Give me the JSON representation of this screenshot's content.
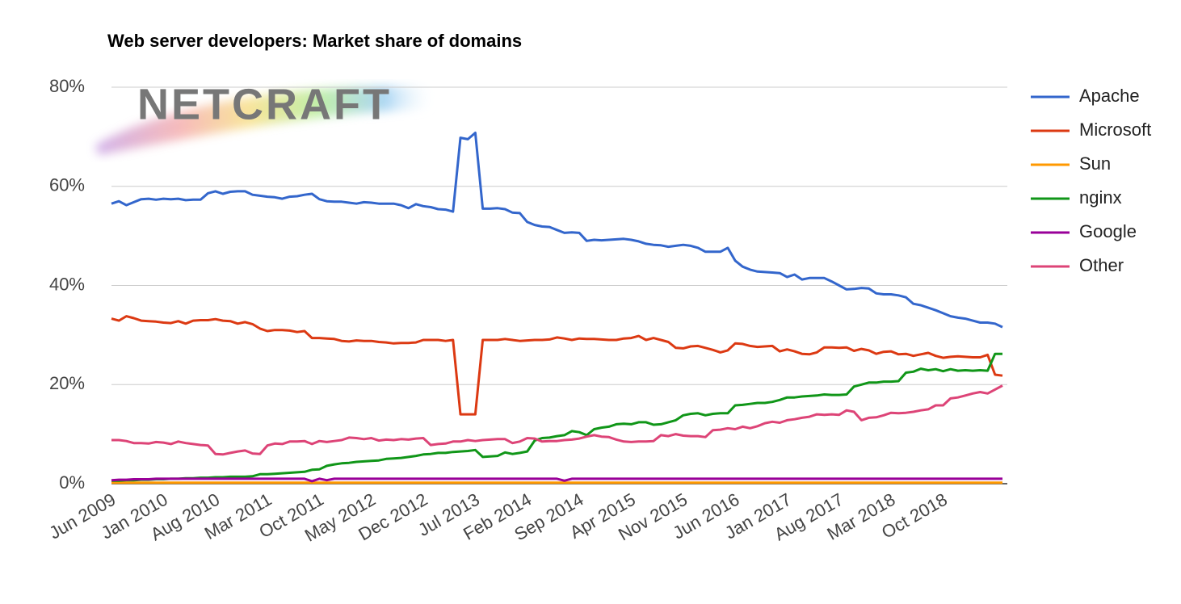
{
  "chart_data": {
    "type": "line",
    "title": "Web server developers: Market share of domains",
    "logo": "NETCRAFT",
    "categories": [
      "Jun 2009",
      null,
      null,
      null,
      null,
      null,
      null,
      "Jan 2010",
      null,
      null,
      null,
      null,
      null,
      null,
      "Aug 2010",
      null,
      null,
      null,
      null,
      null,
      null,
      "Mar 2011",
      null,
      null,
      null,
      null,
      null,
      null,
      "Oct 2011",
      null,
      null,
      null,
      null,
      null,
      null,
      "May 2012",
      null,
      null,
      null,
      null,
      null,
      null,
      "Dec 2012",
      null,
      null,
      null,
      null,
      null,
      null,
      "Jul 2013",
      null,
      null,
      null,
      null,
      null,
      null,
      "Feb 2014",
      null,
      null,
      null,
      null,
      null,
      null,
      "Sep 2014",
      null,
      null,
      null,
      null,
      null,
      null,
      "Apr 2015",
      null,
      null,
      null,
      null,
      null,
      null,
      "Nov 2015",
      null,
      null,
      null,
      null,
      null,
      null,
      "Jun 2016",
      null,
      null,
      null,
      null,
      null,
      null,
      "Jan 2017",
      null,
      null,
      null,
      null,
      null,
      null,
      "Aug 2017",
      null,
      null,
      null,
      null,
      null,
      null,
      "Mar 2018",
      null,
      null,
      null,
      null,
      null,
      null,
      "Oct 2018",
      null,
      null,
      null,
      null,
      null,
      null,
      null,
      null
    ],
    "series": [
      {
        "name": "Apache",
        "color": "#3366cc",
        "values": [
          56.5,
          57,
          56.2,
          56.8,
          57.4,
          57.5,
          57.3,
          57.5,
          57.4,
          57.5,
          57.2,
          57.3,
          57.3,
          58.6,
          59,
          58.5,
          58.9,
          59,
          59,
          58.3,
          58.1,
          57.9,
          57.8,
          57.5,
          57.9,
          58,
          58.3,
          58.5,
          57.4,
          57,
          56.9,
          56.9,
          56.7,
          56.5,
          56.8,
          56.7,
          56.5,
          56.5,
          56.5,
          56.2,
          55.6,
          56.4,
          56,
          55.8,
          55.4,
          55.3,
          54.9,
          69.8,
          69.5,
          70.8,
          55.5,
          55.5,
          55.6,
          55.4,
          54.7,
          54.6,
          52.8,
          52.2,
          51.9,
          51.8,
          51.2,
          50.6,
          50.7,
          50.6,
          49,
          49.2,
          49.1,
          49.2,
          49.3,
          49.4,
          49.2,
          48.9,
          48.4,
          48.2,
          48.1,
          47.8,
          48,
          48.2,
          48,
          47.6,
          46.8,
          46.8,
          46.8,
          47.6,
          45,
          43.8,
          43.2,
          42.8,
          42.7,
          42.6,
          42.5,
          41.7,
          42.2,
          41.2,
          41.5,
          41.5,
          41.5,
          40.8,
          40,
          39.2,
          39.3,
          39.5,
          39.4,
          38.4,
          38.2,
          38.2,
          38,
          37.6,
          36.3,
          36,
          35.5,
          35,
          34.4,
          33.8,
          33.5,
          33.3,
          32.9,
          32.5,
          32.5,
          32.3,
          31.6
        ]
      },
      {
        "name": "Microsoft",
        "color": "#dc3912",
        "values": [
          33.3,
          32.9,
          33.8,
          33.4,
          32.9,
          32.8,
          32.7,
          32.5,
          32.4,
          32.8,
          32.3,
          32.9,
          33,
          33,
          33.2,
          32.9,
          32.8,
          32.3,
          32.6,
          32.2,
          31.3,
          30.8,
          31,
          31,
          30.9,
          30.6,
          30.8,
          29.4,
          29.4,
          29.3,
          29.2,
          28.8,
          28.7,
          28.9,
          28.8,
          28.8,
          28.6,
          28.5,
          28.3,
          28.4,
          28.4,
          28.5,
          29,
          29,
          29,
          28.8,
          29,
          14,
          14,
          14,
          29,
          29,
          29,
          29.2,
          29,
          28.8,
          28.9,
          29,
          29,
          29.1,
          29.5,
          29.3,
          29,
          29.3,
          29.2,
          29.2,
          29.1,
          29,
          29,
          29.3,
          29.4,
          29.8,
          29,
          29.4,
          29,
          28.6,
          27.4,
          27.3,
          27.7,
          27.8,
          27.4,
          27,
          26.5,
          26.9,
          28.3,
          28.2,
          27.8,
          27.6,
          27.7,
          27.8,
          26.7,
          27.1,
          26.7,
          26.2,
          26.1,
          26.5,
          27.5,
          27.5,
          27.4,
          27.5,
          26.8,
          27.2,
          26.9,
          26.2,
          26.6,
          26.7,
          26.1,
          26.2,
          25.8,
          26.1,
          26.4,
          25.8,
          25.4,
          25.6,
          25.7,
          25.6,
          25.5,
          25.5,
          26,
          22,
          21.8
        ]
      },
      {
        "name": "Sun",
        "color": "#ff9900",
        "values": [
          0.2,
          0.2,
          0.2,
          0.2,
          0.2,
          0.2,
          0.2,
          0.2,
          0.2,
          0.2,
          0.2,
          0.2,
          0.2,
          0.2,
          0.2,
          0.2,
          0.2,
          0.2,
          0.2,
          0.2,
          0.2,
          0.2,
          0.2,
          0.2,
          0.2,
          0.2,
          0.2,
          0.2,
          0.2,
          0.2,
          0.2,
          0.2,
          0.2,
          0.2,
          0.2,
          0.2,
          0.2,
          0.2,
          0.2,
          0.2,
          0.2,
          0.2,
          0.2,
          0.2,
          0.2,
          0.2,
          0.2,
          0.2,
          0.2,
          0.2,
          0.2,
          0.2,
          0.2,
          0.2,
          0.2,
          0.2,
          0.2,
          0.2,
          0.2,
          0.2,
          0.2,
          0.2,
          0.2,
          0.2,
          0.2,
          0.2,
          0.2,
          0.2,
          0.2,
          0.2,
          0.2,
          0.2,
          0.2,
          0.2,
          0.2,
          0.2,
          0.2,
          0.2,
          0.2,
          0.2,
          0.2,
          0.2,
          0.2,
          0.2,
          0.2,
          0.2,
          0.2,
          0.2,
          0.2,
          0.2,
          0.2,
          0.2,
          0.2,
          0.2,
          0.2,
          0.2,
          0.2,
          0.2,
          0.2,
          0.2,
          0.2,
          0.2,
          0.2,
          0.2,
          0.2,
          0.2,
          0.2,
          0.2,
          0.2,
          0.2,
          0.2,
          0.2,
          0.2,
          0.2,
          0.2,
          0.2,
          0.2,
          0.2,
          0.2,
          0.2,
          0.2
        ]
      },
      {
        "name": "nginx",
        "color": "#109618",
        "values": [
          0.6,
          0.6,
          0.7,
          0.7,
          0.8,
          0.8,
          0.9,
          0.9,
          1,
          1,
          1.1,
          1.1,
          1.2,
          1.2,
          1.3,
          1.3,
          1.4,
          1.4,
          1.4,
          1.5,
          1.9,
          1.9,
          2,
          2.1,
          2.2,
          2.3,
          2.4,
          2.8,
          2.9,
          3.6,
          3.9,
          4.1,
          4.2,
          4.4,
          4.5,
          4.6,
          4.7,
          5,
          5.1,
          5.2,
          5.4,
          5.6,
          5.9,
          6,
          6.2,
          6.2,
          6.4,
          6.5,
          6.6,
          6.8,
          5.4,
          5.5,
          5.6,
          6.3,
          6,
          6.2,
          6.5,
          8.7,
          9.2,
          9.3,
          9.6,
          9.8,
          10.6,
          10.4,
          9.8,
          11,
          11.3,
          11.5,
          12,
          12.1,
          12,
          12.4,
          12.4,
          11.9,
          12,
          12.4,
          12.8,
          13.8,
          14.1,
          14.2,
          13.8,
          14.1,
          14.2,
          14.2,
          15.8,
          15.9,
          16.1,
          16.3,
          16.3,
          16.5,
          16.9,
          17.4,
          17.4,
          17.6,
          17.7,
          17.8,
          18,
          17.9,
          17.9,
          18,
          19.6,
          20,
          20.4,
          20.4,
          20.6,
          20.6,
          20.7,
          22.4,
          22.6,
          23.2,
          22.9,
          23.1,
          22.7,
          23.1,
          22.8,
          22.9,
          22.8,
          22.9,
          22.8,
          26.2,
          26.2
        ]
      },
      {
        "name": "Google",
        "color": "#990099",
        "values": [
          0.7,
          0.8,
          0.8,
          0.9,
          0.9,
          0.9,
          1,
          1,
          1,
          1,
          1,
          1,
          1,
          1,
          1,
          1,
          1,
          1,
          1,
          1,
          1,
          1,
          1,
          1,
          1,
          1,
          1,
          0.5,
          1,
          0.7,
          1,
          1,
          1,
          1,
          1,
          1,
          1,
          1,
          1,
          1,
          1,
          1,
          1,
          1,
          1,
          1,
          1,
          1,
          1,
          1,
          1,
          1,
          1,
          1,
          1,
          1,
          1,
          1,
          1,
          1,
          1,
          0.6,
          1,
          1,
          1,
          1,
          1,
          1,
          1,
          1,
          1,
          1,
          1,
          1,
          1,
          1,
          1,
          1,
          1,
          1,
          1,
          1,
          1,
          1,
          1,
          1,
          1,
          1,
          1,
          1,
          1,
          1,
          1,
          1,
          1,
          1,
          1,
          1,
          1,
          1,
          1,
          1,
          1,
          1,
          1,
          1,
          1,
          1,
          1,
          1,
          1,
          1,
          1,
          1,
          1,
          1,
          1,
          1,
          1,
          1,
          1
        ]
      },
      {
        "name": "Other",
        "color": "#dd4477",
        "values": [
          8.8,
          8.8,
          8.6,
          8.2,
          8.2,
          8.1,
          8.4,
          8.3,
          8,
          8.5,
          8.2,
          8,
          7.8,
          7.7,
          6,
          5.9,
          6.2,
          6.5,
          6.7,
          6.1,
          6,
          7.7,
          8.1,
          8,
          8.5,
          8.5,
          8.6,
          8,
          8.6,
          8.4,
          8.6,
          8.8,
          9.3,
          9.2,
          9,
          9.2,
          8.7,
          8.9,
          8.8,
          9,
          8.9,
          9.1,
          9.2,
          7.8,
          8,
          8.1,
          8.5,
          8.5,
          8.8,
          8.6,
          8.8,
          8.9,
          9,
          9,
          8.2,
          8.5,
          9.2,
          9.1,
          8.5,
          8.6,
          8.6,
          8.8,
          8.9,
          9.1,
          9.5,
          9.8,
          9.5,
          9.4,
          8.9,
          8.5,
          8.4,
          8.5,
          8.5,
          8.6,
          9.8,
          9.6,
          10,
          9.7,
          9.6,
          9.6,
          9.4,
          10.8,
          10.9,
          11.2,
          11,
          11.5,
          11.2,
          11.6,
          12.2,
          12.5,
          12.3,
          12.8,
          13,
          13.3,
          13.5,
          14,
          13.9,
          14,
          13.9,
          14.8,
          14.5,
          12.8,
          13.3,
          13.4,
          13.8,
          14.3,
          14.2,
          14.3,
          14.5,
          14.8,
          15,
          15.8,
          15.8,
          17.2,
          17.4,
          17.8,
          18.2,
          18.5,
          18.2,
          19,
          19.8
        ]
      }
    ],
    "ylim": [
      0,
      80
    ],
    "yticks": [
      {
        "value": 0,
        "label": "0%"
      },
      {
        "value": 20,
        "label": "20%"
      },
      {
        "value": 40,
        "label": "40%"
      },
      {
        "value": 60,
        "label": "60%"
      },
      {
        "value": 80,
        "label": "80%"
      }
    ],
    "grid": true,
    "legend": "right"
  }
}
